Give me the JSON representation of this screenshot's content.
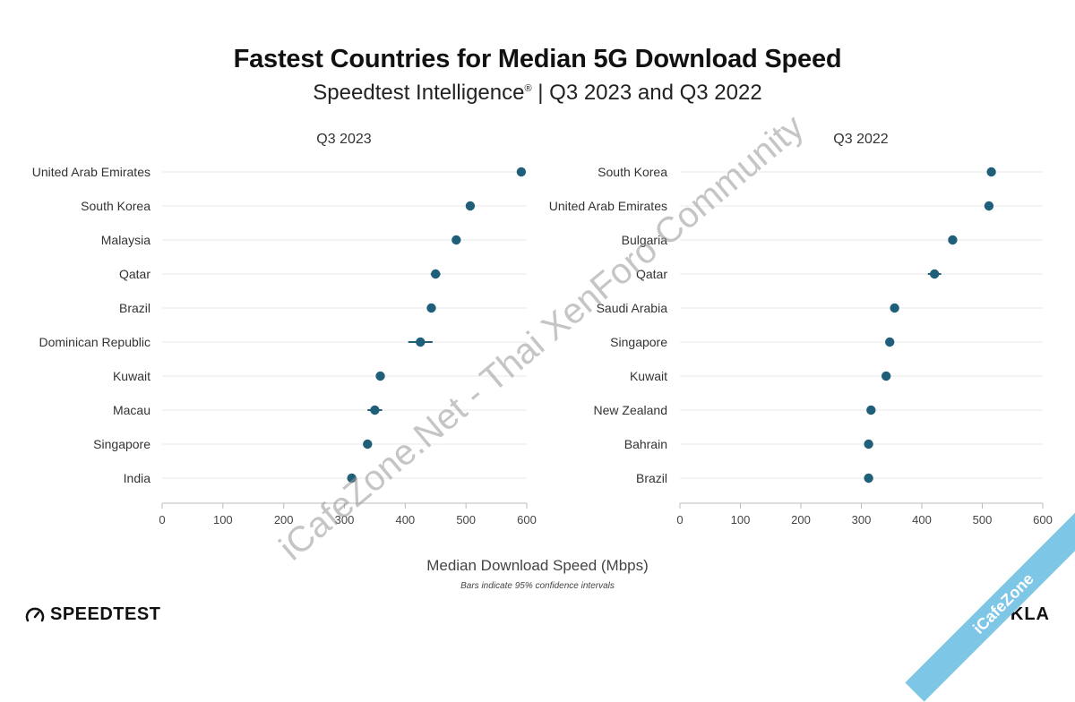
{
  "header": {
    "title": "Fastest Countries for Median 5G Download Speed",
    "subtitle": "Speedtest Intelligence",
    "subtitle_mark": "®",
    "subtitle_rest": " | Q3 2023 and Q3 2022"
  },
  "footer": {
    "xlabel": "Median Download Speed (Mbps)",
    "note": "Bars indicate 95% confidence intervals",
    "brand": "SPEEDTEST",
    "brand_right": "OOKLA"
  },
  "watermark": {
    "text": "iCafeZone.Net - Thai XenForo Community",
    "corner": "iCafeZone"
  },
  "colors": {
    "marker": "#1f5f7a",
    "grid": "#e8e8e8",
    "axis": "#bbbbbb"
  },
  "chart_data": [
    {
      "type": "scatter",
      "title": "Q3 2023",
      "xlabel": "Median Download Speed (Mbps)",
      "xlim": [
        0,
        600
      ],
      "xticks": [
        0,
        100,
        200,
        300,
        400,
        500,
        600
      ],
      "categories": [
        "United Arab Emirates",
        "South Korea",
        "Malaysia",
        "Qatar",
        "Brazil",
        "Dominican Republic",
        "Kuwait",
        "Macau",
        "Singapore",
        "India"
      ],
      "values": [
        591,
        507,
        484,
        450,
        443,
        425,
        359,
        350,
        338,
        312
      ],
      "ci_low": [
        588,
        504,
        481,
        442,
        440,
        405,
        356,
        338,
        335,
        310
      ],
      "ci_high": [
        594,
        510,
        487,
        458,
        446,
        445,
        362,
        362,
        341,
        314
      ]
    },
    {
      "type": "scatter",
      "title": "Q3 2022",
      "xlabel": "Median Download Speed (Mbps)",
      "xlim": [
        0,
        600
      ],
      "xticks": [
        0,
        100,
        200,
        300,
        400,
        500,
        600
      ],
      "categories": [
        "South Korea",
        "United Arab Emirates",
        "Bulgaria",
        "Qatar",
        "Saudi Arabia",
        "Singapore",
        "Kuwait",
        "New Zealand",
        "Bahrain",
        "Brazil"
      ],
      "values": [
        515,
        511,
        451,
        421,
        355,
        347,
        341,
        316,
        312,
        312
      ],
      "ci_low": [
        510,
        508,
        448,
        410,
        352,
        342,
        338,
        313,
        309,
        309
      ],
      "ci_high": [
        520,
        514,
        454,
        432,
        358,
        352,
        344,
        319,
        315,
        315
      ]
    }
  ]
}
